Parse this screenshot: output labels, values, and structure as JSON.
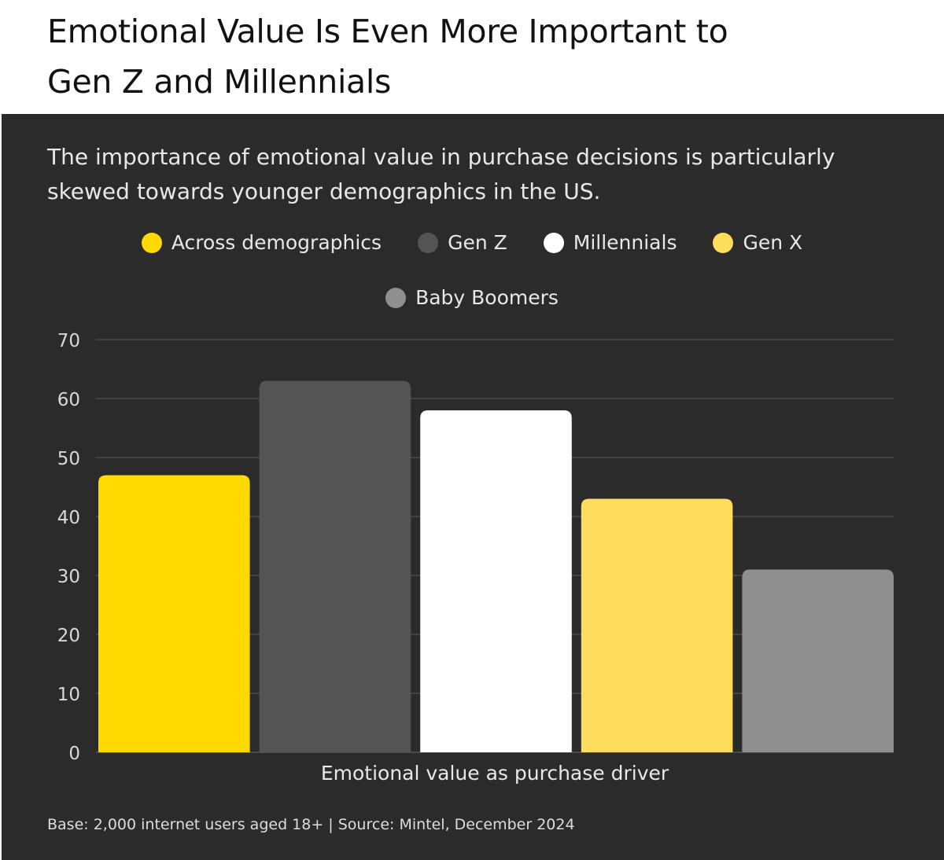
{
  "title": "Emotional Value Is Even More Important to Gen Z and Millennials",
  "subtitle": "The importance of emotional value in purchase decisions is particularly skewed towards younger demographics in the US.",
  "footer": "Base: 2,000 internet users aged 18+ | Source: Mintel, December 2024",
  "chart_data": {
    "type": "bar",
    "categories": [
      "Emotional value as purchase driver"
    ],
    "xlabel": "Emotional value as purchase driver",
    "ylabel": "",
    "ylim": [
      0,
      70
    ],
    "yticks": [
      0,
      10,
      20,
      30,
      40,
      50,
      60,
      70
    ],
    "grid": true,
    "legend_position": "top-center",
    "series": [
      {
        "name": "Across demographics",
        "values": [
          47
        ],
        "color": "#ffd900"
      },
      {
        "name": "Gen Z",
        "values": [
          63
        ],
        "color": "#545454"
      },
      {
        "name": "Millennials",
        "values": [
          58
        ],
        "color": "#ffffff"
      },
      {
        "name": "Gen X",
        "values": [
          43
        ],
        "color": "#ffdd5c"
      },
      {
        "name": "Baby Boomers",
        "values": [
          31
        ],
        "color": "#8f8f8f"
      }
    ]
  }
}
